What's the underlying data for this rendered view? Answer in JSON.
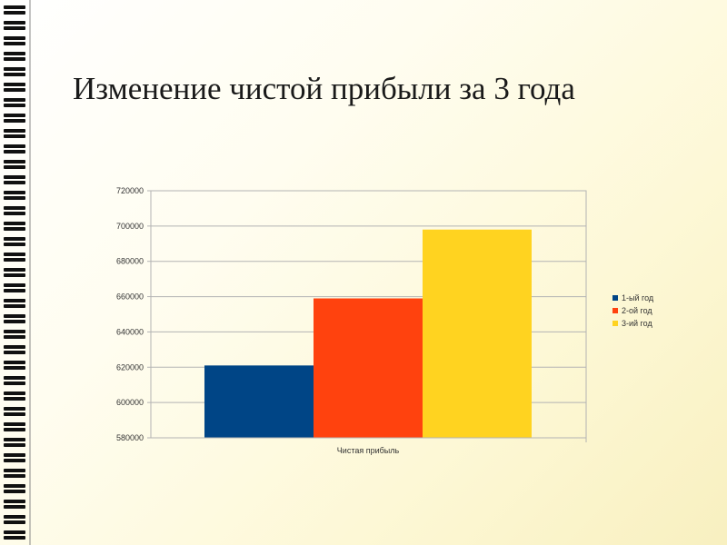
{
  "slide": {
    "title": "Изменение чистой прибыли за 3 года"
  },
  "chart_data": {
    "type": "bar",
    "categories": [
      "Чистая прибыль"
    ],
    "series": [
      {
        "name": "1-ый год",
        "values": [
          621000
        ],
        "color": "#004586"
      },
      {
        "name": "2-ой год",
        "values": [
          659000
        ],
        "color": "#ff420e"
      },
      {
        "name": "3-ий год",
        "values": [
          698000
        ],
        "color": "#ffd320"
      }
    ],
    "ylim": [
      580000,
      720000
    ],
    "yticks": [
      580000,
      600000,
      620000,
      640000,
      660000,
      680000,
      700000,
      720000
    ],
    "ytick_labels": [
      "580000",
      "600000",
      "620000",
      "640000",
      "660000",
      "680000",
      "700000",
      "720000"
    ],
    "xlabel": "",
    "ylabel": "",
    "grid": true,
    "legend": "right"
  }
}
